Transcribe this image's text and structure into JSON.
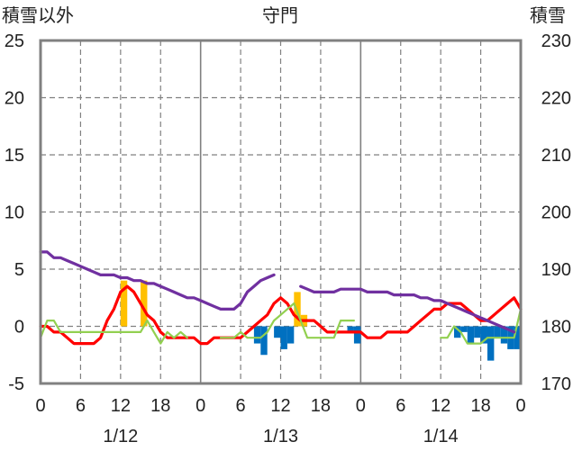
{
  "chart_data": {
    "type": "bar+line",
    "title": "守門",
    "ylabel_left": "積雪以外",
    "ylabel_right": "積雪",
    "ylim_left": [
      -5,
      25
    ],
    "ylim_right": [
      170,
      230
    ],
    "yticks_left": [
      "-5",
      "0",
      "5",
      "10",
      "15",
      "20",
      "25"
    ],
    "yticks_right": [
      "170",
      "180",
      "190",
      "200",
      "210",
      "220",
      "230"
    ],
    "xlim_hours": [
      0,
      72
    ],
    "xticks": [
      "0",
      "6",
      "12",
      "18",
      "0",
      "6",
      "12",
      "18",
      "0",
      "6",
      "12",
      "18",
      "0"
    ],
    "date_labels": [
      "1/12",
      "1/13",
      "1/14"
    ],
    "grid": "dashed",
    "legend": "none",
    "series": [
      {
        "kind": "bar",
        "color": "#FFC000",
        "axis": "left",
        "x": [
          12,
          15,
          38,
          39
        ],
        "values": [
          4.0,
          4.0,
          3.0,
          1.0
        ]
      },
      {
        "kind": "bar",
        "color": "#0070C0",
        "axis": "left",
        "x": [
          32,
          33,
          35,
          36,
          37,
          46,
          47,
          62,
          63,
          64,
          65,
          66,
          67,
          68,
          69,
          70,
          71
        ],
        "values": [
          -1.5,
          -2.5,
          -1.0,
          -2.0,
          -1.5,
          -0.5,
          -1.5,
          -1.0,
          -0.5,
          -1.5,
          -1.0,
          -1.5,
          -3.0,
          -1.0,
          -1.5,
          -2.0,
          -2.0
        ]
      },
      {
        "kind": "line",
        "color": "#FF0000",
        "axis": "left",
        "x": [
          0,
          1,
          2,
          3,
          4,
          5,
          6,
          7,
          8,
          9,
          10,
          11,
          12,
          13,
          14,
          15,
          16,
          17,
          18,
          19,
          20,
          21,
          22,
          23,
          24,
          25,
          26,
          27,
          28,
          29,
          30,
          31,
          32,
          33,
          34,
          35,
          36,
          37,
          38,
          39,
          40,
          41,
          42,
          43,
          44,
          45,
          46,
          47,
          48,
          49,
          50,
          51,
          52,
          53,
          54,
          55,
          56,
          57,
          58,
          59,
          60,
          61,
          62,
          63,
          64,
          65,
          66,
          67,
          68,
          69,
          70,
          71,
          72
        ],
        "values": [
          0,
          0,
          -0.5,
          -0.5,
          -1.0,
          -1.5,
          -1.5,
          -1.5,
          -1.5,
          -1.0,
          0.5,
          1.5,
          3.0,
          3.5,
          3.0,
          2.0,
          1.0,
          0.5,
          -0.5,
          -1.0,
          -1.0,
          -1.0,
          -1.0,
          -1.0,
          -1.5,
          -1.5,
          -1.0,
          -1.0,
          -1.0,
          -1.0,
          -1.0,
          -0.5,
          0,
          0.5,
          1.0,
          2.0,
          2.5,
          2.0,
          1.0,
          0.5,
          0.5,
          0.5,
          0,
          -0.5,
          -0.5,
          -0.5,
          -0.5,
          -0.5,
          -0.5,
          -1.0,
          -1.0,
          -1.0,
          -0.5,
          -0.5,
          -0.5,
          -0.5,
          0,
          0.5,
          1.0,
          1.5,
          1.5,
          2.0,
          2.0,
          2.0,
          1.5,
          1.0,
          0.5,
          0.5,
          1.0,
          1.5,
          2.0,
          2.5,
          1.5
        ]
      },
      {
        "kind": "line",
        "color": "#92D050",
        "axis": "left",
        "segments": [
          {
            "x": [
              0,
              1,
              2,
              3,
              4,
              5,
              6,
              7,
              8,
              9,
              10,
              11,
              12,
              13,
              14,
              15,
              16,
              17,
              18,
              19,
              20,
              21,
              22
            ],
            "values": [
              -1.0,
              0.5,
              0.5,
              -0.5,
              -0.5,
              -0.5,
              -0.5,
              -0.5,
              -0.5,
              -0.5,
              -0.5,
              -0.5,
              -0.5,
              -0.5,
              -0.5,
              -0.5,
              0.5,
              -0.5,
              -1.5,
              -0.5,
              -1.0,
              -0.5,
              -1.0
            ]
          },
          {
            "x": [
              27,
              28,
              29,
              30,
              31,
              32,
              33,
              34,
              35,
              36,
              37,
              38,
              39,
              40,
              41,
              42,
              43,
              44,
              45,
              46,
              47
            ],
            "values": [
              -1.0,
              -1.0,
              -1.0,
              -0.5,
              -1.0,
              -1.0,
              -1.0,
              -0.5,
              0.5,
              1.0,
              1.5,
              2.0,
              0.5,
              -1.0,
              -1.0,
              -1.0,
              -1.0,
              -1.0,
              0.5,
              0.5,
              0.5
            ]
          },
          {
            "x": [
              60,
              61,
              62,
              63,
              64,
              65,
              66,
              67,
              68,
              69,
              70,
              71,
              72
            ],
            "values": [
              -1.0,
              -1.0,
              0,
              -0.5,
              -1.5,
              -1.5,
              -1.5,
              -1.0,
              -1.0,
              -1.0,
              -1.0,
              -1.0,
              1.5
            ]
          }
        ]
      },
      {
        "kind": "line",
        "color": "#7030A0",
        "axis": "right",
        "segments": [
          {
            "x": [
              0,
              1,
              2,
              3,
              4,
              5,
              6,
              7,
              8,
              9,
              10,
              11,
              12,
              13,
              14,
              15,
              16,
              17,
              18,
              19,
              20,
              21,
              22,
              23,
              24,
              25,
              26,
              27,
              28,
              29,
              30,
              31,
              32,
              33,
              34,
              35
            ],
            "values": [
              193,
              193,
              192,
              192,
              191.5,
              191,
              190.5,
              190,
              189.5,
              189,
              189,
              189,
              188.5,
              188.5,
              188,
              188,
              187.5,
              187.5,
              187,
              186.5,
              186,
              185.5,
              185,
              185,
              184.5,
              184,
              183.5,
              183,
              183,
              183,
              184,
              186,
              187,
              188,
              188.5,
              189
            ]
          },
          {
            "x": [
              39,
              40,
              41,
              42,
              43,
              44,
              45,
              46,
              47,
              48,
              49,
              50,
              51,
              52,
              53,
              54,
              55,
              56,
              57,
              58,
              59,
              60,
              61,
              62,
              63,
              64,
              65,
              66,
              67,
              68,
              69,
              70,
              71
            ],
            "values": [
              187,
              186.5,
              186,
              186,
              186,
              186,
              186.5,
              186.5,
              186.5,
              186.5,
              186,
              186,
              186,
              186,
              185.5,
              185.5,
              185.5,
              185.5,
              185,
              185,
              184.5,
              184.5,
              184,
              183.5,
              183,
              182.5,
              182,
              181.5,
              181,
              180.5,
              180,
              179.5,
              179
            ]
          }
        ]
      }
    ]
  }
}
